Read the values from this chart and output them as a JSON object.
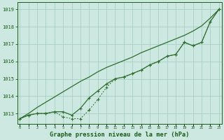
{
  "x": [
    0,
    1,
    2,
    3,
    4,
    5,
    6,
    7,
    8,
    9,
    10,
    11,
    12,
    13,
    14,
    15,
    16,
    17,
    18,
    19,
    20,
    21,
    22,
    23
  ],
  "line_main": [
    1012.7,
    1012.9,
    1013.0,
    1013.0,
    1013.1,
    1013.1,
    1012.9,
    1013.3,
    1013.9,
    1014.3,
    1014.7,
    1015.0,
    1015.1,
    1015.3,
    1015.5,
    1015.8,
    1016.0,
    1016.3,
    1016.4,
    1017.1,
    1016.9,
    1017.1,
    1018.3,
    1019.0
  ],
  "line_dotted": [
    1012.7,
    1012.9,
    1013.0,
    1013.0,
    1013.1,
    1012.8,
    1012.7,
    1012.7,
    1013.2,
    1013.8,
    1014.5,
    1015.0,
    1015.1,
    1015.3,
    1015.5,
    1015.8,
    1016.0,
    1016.3,
    1016.4,
    1017.1,
    1016.9,
    1017.1,
    1018.3,
    1019.0
  ],
  "line_straight": [
    1012.7,
    1013.0,
    1013.35,
    1013.65,
    1013.95,
    1014.25,
    1014.55,
    1014.85,
    1015.1,
    1015.4,
    1015.65,
    1015.85,
    1016.05,
    1016.25,
    1016.5,
    1016.7,
    1016.9,
    1017.1,
    1017.3,
    1017.5,
    1017.75,
    1018.05,
    1018.5,
    1019.0
  ],
  "bg_color": "#cce8e0",
  "line_color": "#2d6e2d",
  "grid_color": "#a8cec4",
  "text_color": "#1a5c1a",
  "xlabel": "Graphe pression niveau de la mer (hPa)",
  "ylim": [
    1012.4,
    1019.4
  ],
  "yticks": [
    1013,
    1014,
    1015,
    1016,
    1017,
    1018,
    1019
  ],
  "xticks": [
    0,
    1,
    2,
    3,
    4,
    5,
    6,
    7,
    8,
    9,
    10,
    11,
    12,
    13,
    14,
    15,
    16,
    17,
    18,
    19,
    20,
    21,
    22,
    23
  ]
}
